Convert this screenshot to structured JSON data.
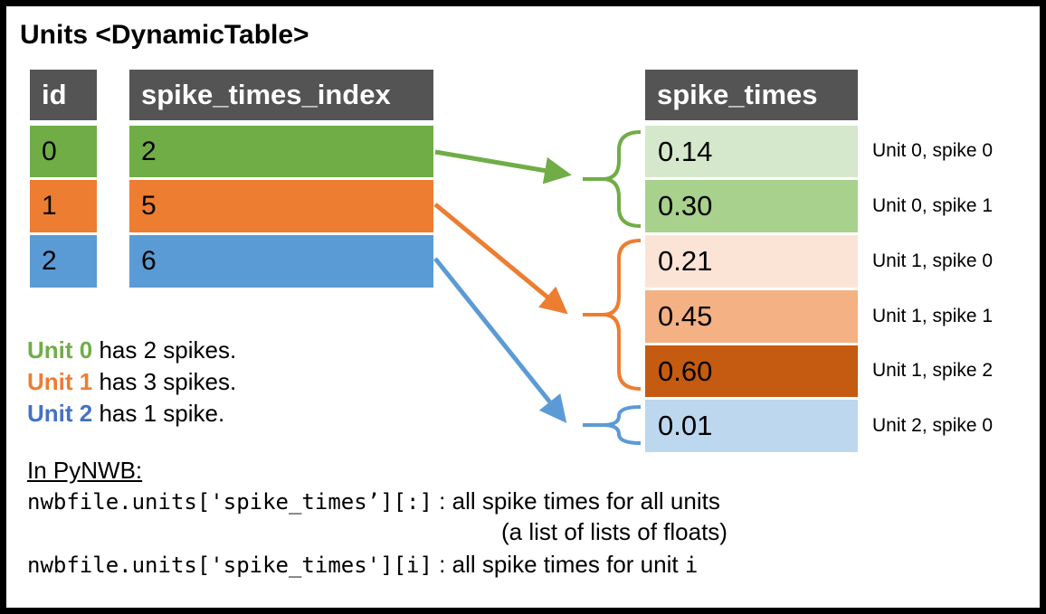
{
  "title": "Units <DynamicTable>",
  "units_table": {
    "headers": [
      "id",
      "spike_times_index"
    ],
    "rows": [
      {
        "id": "0",
        "index": "2",
        "color": "#70AD47"
      },
      {
        "id": "1",
        "index": "5",
        "color": "#ED7D31"
      },
      {
        "id": "2",
        "index": "6",
        "color": "#5B9BD5"
      }
    ]
  },
  "spike_times_table": {
    "header": "spike_times",
    "rows": [
      {
        "value": "0.14",
        "label": "Unit 0, spike 0",
        "color": "#D5E8CB"
      },
      {
        "value": "0.30",
        "label": "Unit 0, spike 1",
        "color": "#A9D18E"
      },
      {
        "value": "0.21",
        "label": "Unit 1, spike 0",
        "color": "#FBE4D6"
      },
      {
        "value": "0.45",
        "label": "Unit 1, spike 1",
        "color": "#F4B183"
      },
      {
        "value": "0.60",
        "label": "Unit 1, spike 2",
        "color": "#C55A11"
      },
      {
        "value": "0.01",
        "label": "Unit 2, spike 0",
        "color": "#BDD7EE"
      }
    ]
  },
  "summary": [
    {
      "unit": "Unit 0",
      "rest": " has 2 spikes.",
      "color": "#70AD47"
    },
    {
      "unit": "Unit 1",
      "rest": " has 3 spikes.",
      "color": "#ED7D31"
    },
    {
      "unit": "Unit 2",
      "rest": " has 1 spike.",
      "color": "#4472C4"
    }
  ],
  "pynwb": {
    "heading": "In PyNWB:",
    "line1_code": "nwbfile.units['spike_times’][:]",
    "line1_desc": " : all spike times for all units",
    "line1_desc2": "(a list of lists of floats)",
    "line2_code": "nwbfile.units['spike_times'][i]",
    "line2_desc": " : all spike times for unit ",
    "line2_var": "i"
  },
  "colors": {
    "green": "#70AD47",
    "orange": "#ED7D31",
    "blue": "#5B9BD5",
    "header_gray": "#545454"
  }
}
